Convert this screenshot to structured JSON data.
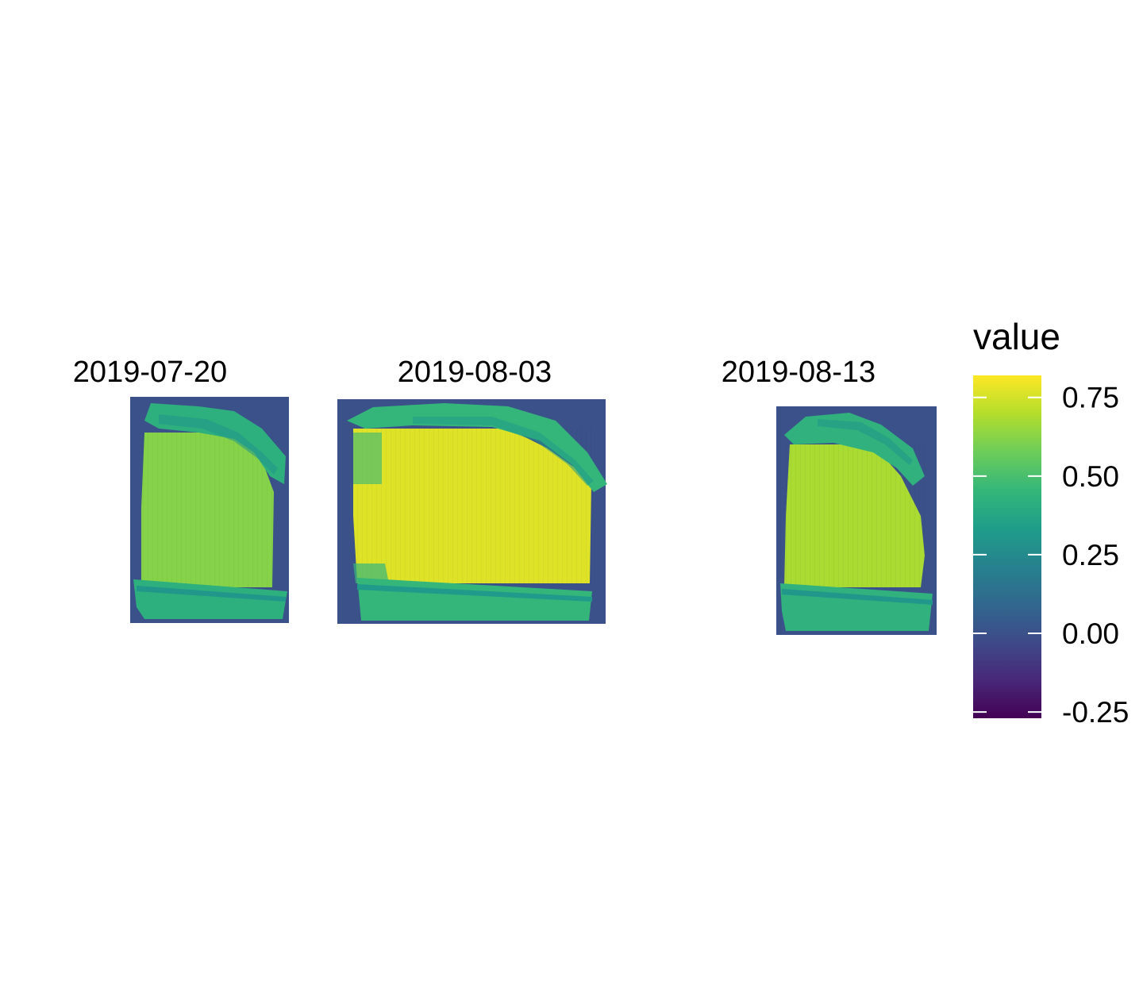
{
  "chart_data": {
    "type": "heatmap",
    "title": "",
    "facets": [
      {
        "label": "2019-07-20",
        "background_value": 0.0,
        "field_value": 0.62,
        "edge_value": 0.42,
        "road_value": 0.3
      },
      {
        "label": "2019-08-03",
        "background_value": 0.0,
        "field_value": 0.77,
        "edge_value": 0.45,
        "road_value": 0.32
      },
      {
        "label": "2019-08-13",
        "background_value": 0.0,
        "field_value": 0.68,
        "edge_value": 0.43,
        "road_value": 0.3
      }
    ],
    "legend": {
      "title": "value",
      "position": "right",
      "range": [
        -0.27,
        0.82
      ],
      "ticks": [
        -0.25,
        0.0,
        0.25,
        0.5,
        0.75
      ],
      "tick_labels": [
        "-0.25",
        "0.00",
        "0.25",
        "0.50",
        "0.75"
      ],
      "palette": "viridis",
      "colors": [
        "#440154",
        "#482878",
        "#3E4A89",
        "#31688E",
        "#26828E",
        "#1F9E89",
        "#35B779",
        "#6DCD59",
        "#B4DE2C",
        "#FDE725"
      ]
    }
  }
}
